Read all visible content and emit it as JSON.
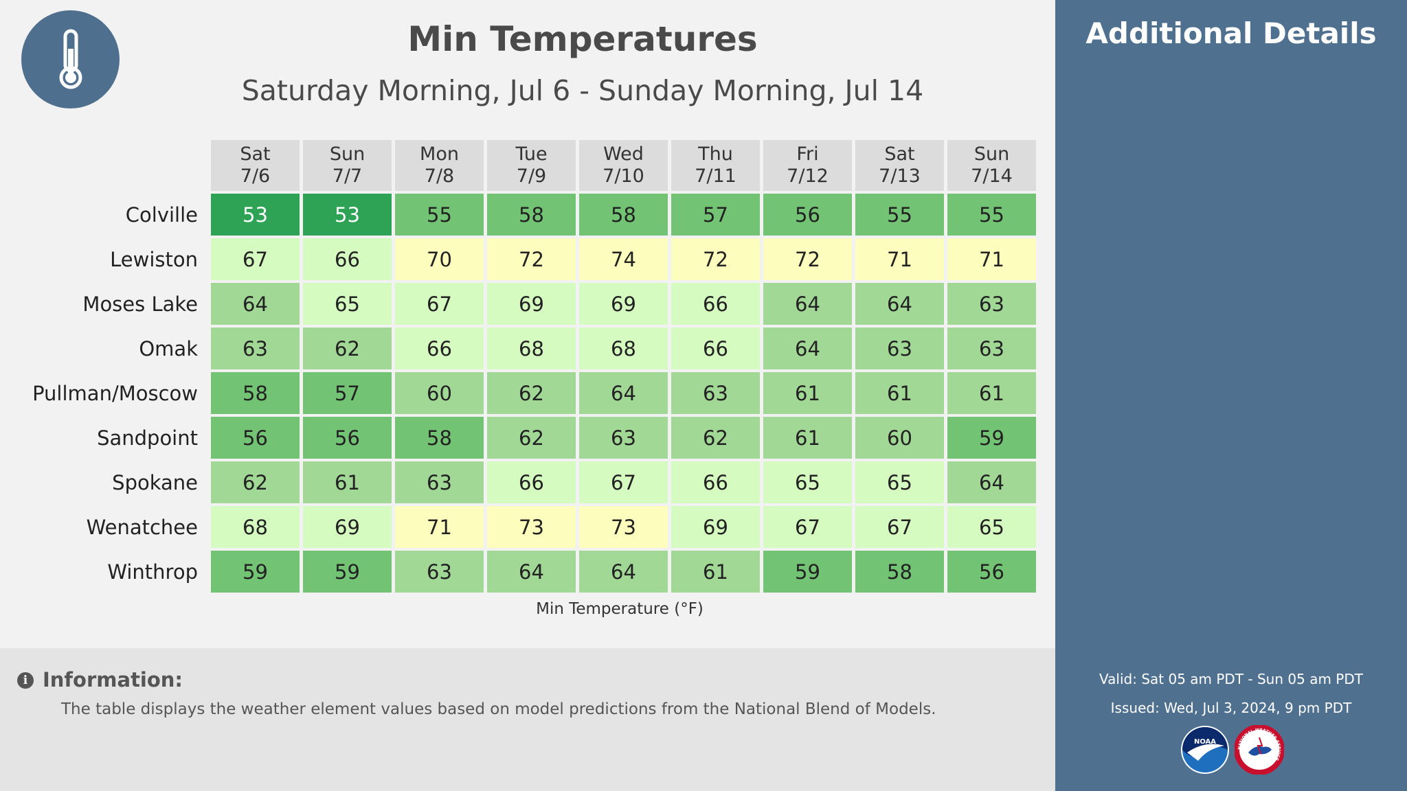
{
  "title": "Min Temperatures",
  "subtitle": "Saturday Morning, Jul 6 - Sunday Morning, Jul 14",
  "days": [
    {
      "dow": "Sat",
      "date": "7/6"
    },
    {
      "dow": "Sun",
      "date": "7/7"
    },
    {
      "dow": "Mon",
      "date": "7/8"
    },
    {
      "dow": "Tue",
      "date": "7/9"
    },
    {
      "dow": "Wed",
      "date": "7/10"
    },
    {
      "dow": "Thu",
      "date": "7/11"
    },
    {
      "dow": "Fri",
      "date": "7/12"
    },
    {
      "dow": "Sat",
      "date": "7/13"
    },
    {
      "dow": "Sun",
      "date": "7/14"
    }
  ],
  "rows": [
    {
      "city": "Colville",
      "values": [
        53,
        53,
        55,
        58,
        58,
        57,
        56,
        55,
        55
      ]
    },
    {
      "city": "Lewiston",
      "values": [
        67,
        66,
        70,
        72,
        74,
        72,
        72,
        71,
        71
      ]
    },
    {
      "city": "Moses Lake",
      "values": [
        64,
        65,
        67,
        69,
        69,
        66,
        64,
        64,
        63
      ]
    },
    {
      "city": "Omak",
      "values": [
        63,
        62,
        66,
        68,
        68,
        66,
        64,
        63,
        63
      ]
    },
    {
      "city": "Pullman/Moscow",
      "values": [
        58,
        57,
        60,
        62,
        64,
        63,
        61,
        61,
        61
      ]
    },
    {
      "city": "Sandpoint",
      "values": [
        56,
        56,
        58,
        62,
        63,
        62,
        61,
        60,
        59
      ]
    },
    {
      "city": "Spokane",
      "values": [
        62,
        61,
        63,
        66,
        67,
        66,
        65,
        65,
        64
      ]
    },
    {
      "city": "Wenatchee",
      "values": [
        68,
        69,
        71,
        73,
        73,
        69,
        67,
        67,
        65
      ]
    },
    {
      "city": "Winthrop",
      "values": [
        59,
        59,
        63,
        64,
        64,
        61,
        59,
        58,
        56
      ]
    }
  ],
  "cell_colors": [
    [
      "#2fa355",
      "#2fa355",
      "#72c474",
      "#72c474",
      "#72c474",
      "#72c474",
      "#72c474",
      "#72c474",
      "#72c474"
    ],
    [
      "#d6fbc0",
      "#d6fbc0",
      "#fdfdbd",
      "#fdfdbd",
      "#fdfdbd",
      "#fdfdbd",
      "#fdfdbd",
      "#fdfdbd",
      "#fdfdbd"
    ],
    [
      "#a2d896",
      "#d6fbc0",
      "#d6fbc0",
      "#d6fbc0",
      "#d6fbc0",
      "#d6fbc0",
      "#a2d896",
      "#a2d896",
      "#a2d896"
    ],
    [
      "#a2d896",
      "#a2d896",
      "#d6fbc0",
      "#d6fbc0",
      "#d6fbc0",
      "#d6fbc0",
      "#a2d896",
      "#a2d896",
      "#a2d896"
    ],
    [
      "#72c474",
      "#72c474",
      "#a2d896",
      "#a2d896",
      "#a2d896",
      "#a2d896",
      "#a2d896",
      "#a2d896",
      "#a2d896"
    ],
    [
      "#72c474",
      "#72c474",
      "#72c474",
      "#a2d896",
      "#a2d896",
      "#a2d896",
      "#a2d896",
      "#a2d896",
      "#72c474"
    ],
    [
      "#a2d896",
      "#a2d896",
      "#a2d896",
      "#d6fbc0",
      "#d6fbc0",
      "#d6fbc0",
      "#d6fbc0",
      "#d6fbc0",
      "#a2d896"
    ],
    [
      "#d6fbc0",
      "#d6fbc0",
      "#fdfdbd",
      "#fdfdbd",
      "#fdfdbd",
      "#d6fbc0",
      "#d6fbc0",
      "#d6fbc0",
      "#d6fbc0"
    ],
    [
      "#72c474",
      "#72c474",
      "#a2d896",
      "#a2d896",
      "#a2d896",
      "#a2d896",
      "#72c474",
      "#72c474",
      "#72c474"
    ]
  ],
  "dark_text_color_cells": [
    [
      0,
      0
    ],
    [
      0,
      1
    ]
  ],
  "axis_label": "Min Temperature (°F)",
  "info": {
    "title": "Information:",
    "icon": "info-icon",
    "text": "The table displays the weather element values based on model predictions from the National Blend of Models."
  },
  "side_panel": {
    "title": "Additional Details",
    "valid": "Valid: Sat 05 am PDT - Sun 05 am PDT",
    "issued": "Issued: Wed, Jul 3, 2024, 9 pm PDT",
    "logos": [
      "noaa-logo",
      "nws-logo"
    ],
    "logo_text": {
      "noaa": "NOAA",
      "nws": "NATIONAL WEATHER SERVICE"
    }
  },
  "header_icon": "thermometer-icon",
  "colors": {
    "side_panel_bg": "#50708f",
    "badge_bg": "#4f6f8f",
    "header_bg": "#dcdcdc"
  }
}
